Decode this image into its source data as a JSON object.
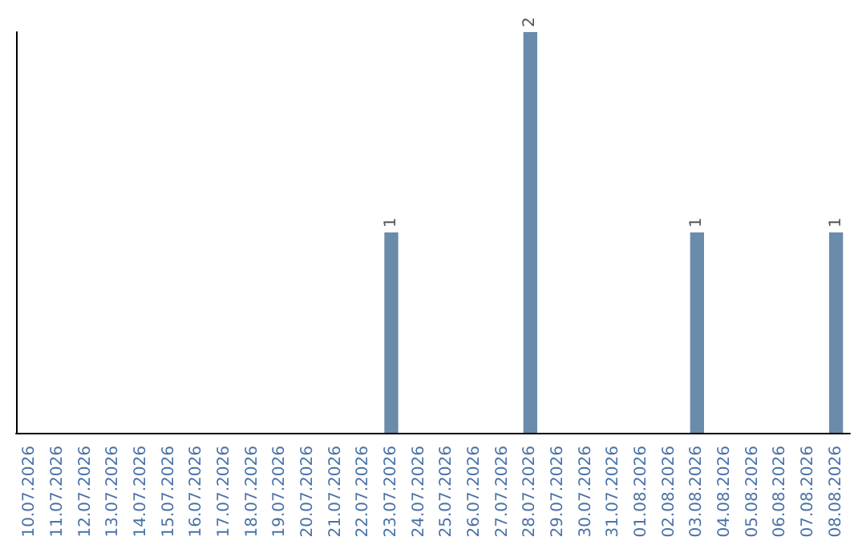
{
  "chart_data": {
    "type": "bar",
    "categories": [
      "10.07.2026",
      "11.07.2026",
      "12.07.2026",
      "13.07.2026",
      "14.07.2026",
      "15.07.2026",
      "16.07.2026",
      "17.07.2026",
      "18.07.2026",
      "19.07.2026",
      "20.07.2026",
      "21.07.2026",
      "22.07.2026",
      "23.07.2026",
      "24.07.2026",
      "25.07.2026",
      "26.07.2026",
      "27.07.2026",
      "28.07.2026",
      "29.07.2026",
      "30.07.2026",
      "31.07.2026",
      "01.08.2026",
      "02.08.2026",
      "03.08.2026",
      "04.08.2026",
      "05.08.2026",
      "06.08.2026",
      "07.08.2026",
      "08.08.2026"
    ],
    "values": [
      null,
      null,
      null,
      null,
      null,
      null,
      null,
      null,
      null,
      null,
      null,
      null,
      null,
      1,
      null,
      null,
      null,
      null,
      2,
      null,
      null,
      null,
      null,
      null,
      1,
      null,
      null,
      null,
      null,
      1
    ],
    "data_labels": true,
    "color": "#6b8bab",
    "tick_labels": "x",
    "grid": false
  }
}
